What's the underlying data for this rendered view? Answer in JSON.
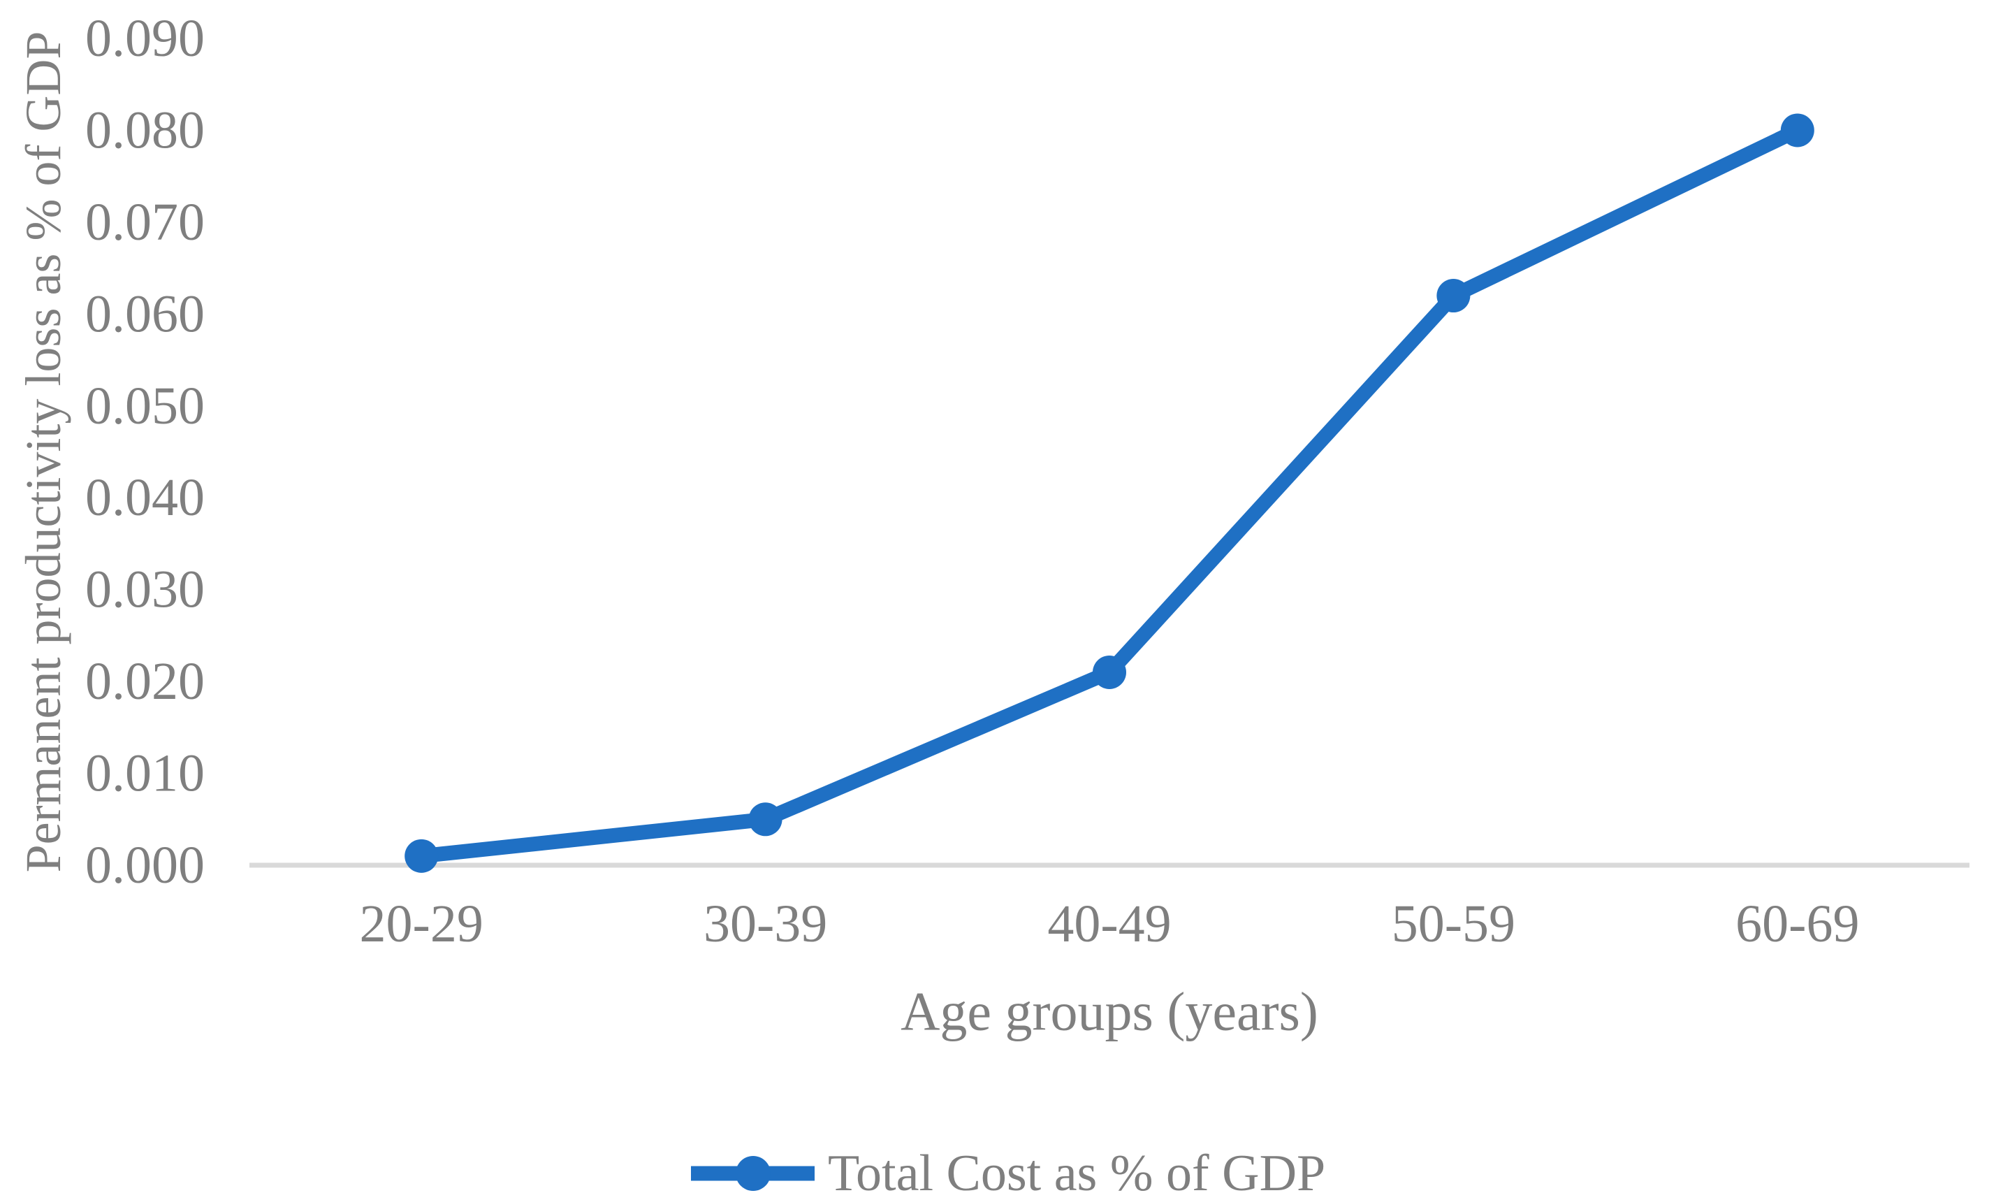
{
  "chart_data": {
    "type": "line",
    "title": "",
    "categories": [
      "20-29",
      "30-39",
      "40-49",
      "50-59",
      "60-69"
    ],
    "series": [
      {
        "name": "Total Cost as % of GDP",
        "values": [
          0.001,
          0.005,
          0.021,
          0.062,
          0.08
        ]
      }
    ],
    "xlabel": "Age groups (years)",
    "ylabel": "Permanent productivity loss as % of GDP",
    "ylim": [
      0.0,
      0.09
    ],
    "ytick_step": 0.01,
    "ytick_decimals": 3,
    "grid": false,
    "axis_line": "x-only",
    "legend_position": "bottom-center",
    "marker": "circle",
    "colors": {
      "series": "#1F70C4",
      "text": "#7F7F7F",
      "axis_line": "#D9D9D9",
      "background": "#FFFFFF"
    }
  }
}
